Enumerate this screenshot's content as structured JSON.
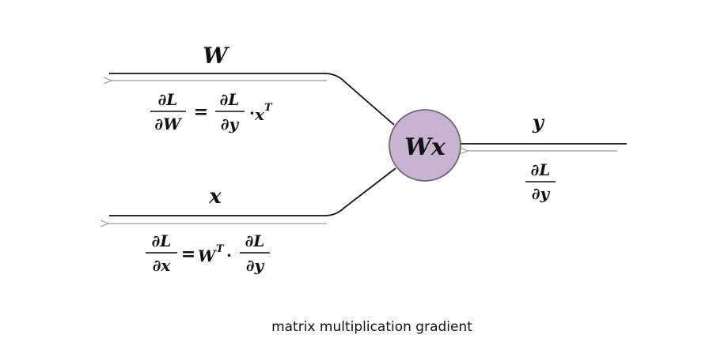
{
  "node": {
    "label": "Wx",
    "fill": "#c8b3d3",
    "stroke": "#6b6b6b"
  },
  "inputs": {
    "w": {
      "label": "W",
      "gradient": {
        "num": "∂L",
        "den": "∂W",
        "eq": "=",
        "num2": "∂L",
        "den2": "∂y",
        "dot": "·",
        "factor": "x",
        "sup": "T"
      }
    },
    "x": {
      "label": "x",
      "gradient": {
        "num": "∂L",
        "den": "∂x",
        "eq": "=",
        "factor": "W",
        "sup": "T",
        "dot": "·",
        "num2": "∂L",
        "den2": "∂y"
      }
    }
  },
  "output": {
    "label": "y",
    "gradient": {
      "num": "∂L",
      "den": "∂y"
    }
  },
  "caption": "matrix multiplication gradient",
  "colors": {
    "wire": "#111111",
    "back_arrow": "#9a9a9a"
  }
}
